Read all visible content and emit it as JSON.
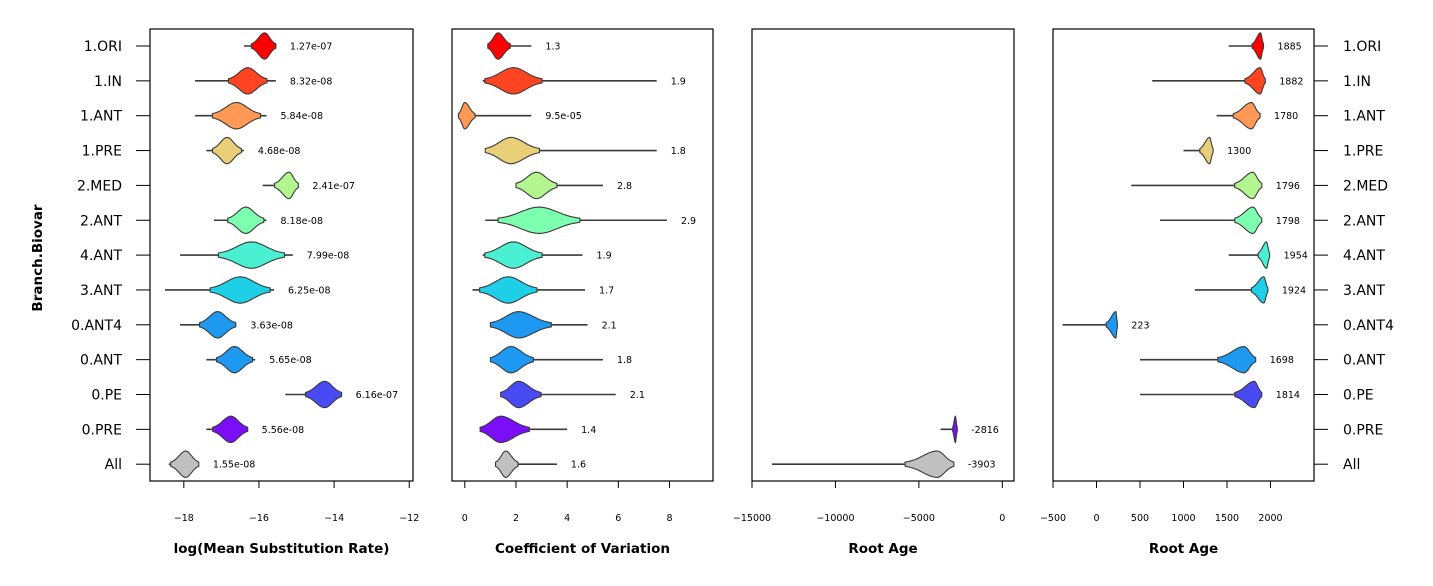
{
  "ylabel": "Branch.Biovar",
  "rows": [
    "1.ORI",
    "1.IN",
    "1.ANT",
    "1.PRE",
    "2.MED",
    "2.ANT",
    "4.ANT",
    "3.ANT",
    "0.ANT4",
    "0.ANT",
    "0.PE",
    "0.PRE",
    "All"
  ],
  "colors": [
    "#ff0000",
    "#ff4422",
    "#ff9955",
    "#e8cf78",
    "#b3f58f",
    "#7dffb0",
    "#4af0d2",
    "#1ecfe8",
    "#1d99f2",
    "#1d99f2",
    "#4a4af5",
    "#7a0ff7",
    "#c0c0c0"
  ],
  "chart_data": [
    {
      "type": "violin",
      "xlabel": "log(Mean Substitution Rate)",
      "xlim": [
        -18.9,
        -11.9
      ],
      "xticks": [
        -18,
        -16,
        -14,
        -12
      ],
      "xtick_labels": [
        "−18",
        "−16",
        "−14",
        "−12"
      ],
      "series": [
        {
          "row": "1.ORI",
          "center": -15.85,
          "min": -16.4,
          "max": -15.55,
          "width": 0.22,
          "annotation": "1.27e-07"
        },
        {
          "row": "1.IN",
          "center": -16.3,
          "min": -17.7,
          "max": -15.55,
          "width": 0.32,
          "annotation": "8.32e-08"
        },
        {
          "row": "1.ANT",
          "center": -16.6,
          "min": -17.7,
          "max": -15.8,
          "width": 0.4,
          "annotation": "5.84e-08"
        },
        {
          "row": "1.PRE",
          "center": -16.85,
          "min": -17.4,
          "max": -16.4,
          "width": 0.24,
          "annotation": "4.68e-08"
        },
        {
          "row": "2.MED",
          "center": -15.2,
          "min": -15.9,
          "max": -14.95,
          "width": 0.24,
          "annotation": "2.41e-07"
        },
        {
          "row": "2.ANT",
          "center": -16.35,
          "min": -17.2,
          "max": -15.8,
          "width": 0.3,
          "annotation": "8.18e-08"
        },
        {
          "row": "4.ANT",
          "center": -16.2,
          "min": -18.1,
          "max": -15.1,
          "width": 0.55,
          "annotation": "7.99e-08"
        },
        {
          "row": "3.ANT",
          "center": -16.5,
          "min": -18.5,
          "max": -15.6,
          "width": 0.5,
          "annotation": "6.25e-08"
        },
        {
          "row": "0.ANT4",
          "center": -17.1,
          "min": -18.1,
          "max": -16.6,
          "width": 0.3,
          "annotation": "3.63e-08"
        },
        {
          "row": "0.ANT",
          "center": -16.65,
          "min": -17.4,
          "max": -16.1,
          "width": 0.3,
          "annotation": "5.65e-08"
        },
        {
          "row": "0.PE",
          "center": -14.25,
          "min": -15.3,
          "max": -13.8,
          "width": 0.32,
          "annotation": "6.16e-07"
        },
        {
          "row": "0.PRE",
          "center": -16.75,
          "min": -17.4,
          "max": -16.3,
          "width": 0.3,
          "annotation": "5.56e-08"
        },
        {
          "row": "All",
          "center": -17.95,
          "min": -18.4,
          "max": -17.6,
          "width": 0.25,
          "annotation": "1.55e-08"
        }
      ]
    },
    {
      "type": "violin",
      "xlabel": "Coefficient of Variation",
      "xlim": [
        -0.5,
        9.7
      ],
      "xticks": [
        0,
        2,
        4,
        6,
        8
      ],
      "xtick_labels": [
        "0",
        "2",
        "4",
        "6",
        "8"
      ],
      "series": [
        {
          "row": "1.ORI",
          "center": 1.3,
          "min": 0.9,
          "max": 2.6,
          "width": 0.3,
          "annotation": "1.3"
        },
        {
          "row": "1.IN",
          "center": 1.9,
          "min": 0.7,
          "max": 7.5,
          "width": 0.7,
          "annotation": "1.9"
        },
        {
          "row": "1.ANT",
          "center": 0.0,
          "min": -0.25,
          "max": 2.6,
          "width": 0.25,
          "annotation": "9.5e-05"
        },
        {
          "row": "1.PRE",
          "center": 1.8,
          "min": 0.8,
          "max": 7.5,
          "width": 0.7,
          "annotation": "1.8"
        },
        {
          "row": "2.MED",
          "center": 2.8,
          "min": 2.0,
          "max": 5.4,
          "width": 0.5,
          "annotation": "2.8"
        },
        {
          "row": "2.ANT",
          "center": 2.9,
          "min": 0.8,
          "max": 7.9,
          "width": 1.0,
          "annotation": "2.9"
        },
        {
          "row": "4.ANT",
          "center": 1.9,
          "min": 0.7,
          "max": 4.6,
          "width": 0.7,
          "annotation": "1.9"
        },
        {
          "row": "3.ANT",
          "center": 1.7,
          "min": 0.3,
          "max": 4.7,
          "width": 0.7,
          "annotation": "1.7"
        },
        {
          "row": "0.ANT4",
          "center": 2.1,
          "min": 1.0,
          "max": 4.8,
          "width": 0.8,
          "annotation": "2.1"
        },
        {
          "row": "0.ANT",
          "center": 1.8,
          "min": 1.0,
          "max": 5.4,
          "width": 0.55,
          "annotation": "1.8"
        },
        {
          "row": "0.PE",
          "center": 2.1,
          "min": 1.4,
          "max": 5.9,
          "width": 0.55,
          "annotation": "2.1"
        },
        {
          "row": "0.PRE",
          "center": 1.4,
          "min": 0.6,
          "max": 4.0,
          "width": 0.7,
          "annotation": "1.4"
        },
        {
          "row": "All",
          "center": 1.6,
          "min": 1.2,
          "max": 3.6,
          "width": 0.3,
          "annotation": "1.6"
        }
      ]
    },
    {
      "type": "violin",
      "xlabel": "Root Age",
      "xlim": [
        -15000,
        700
      ],
      "xticks": [
        -15000,
        -10000,
        -5000,
        0
      ],
      "xtick_labels": [
        "−15000",
        "−10000",
        "−5000",
        "0"
      ],
      "series": [
        {
          "row": "0.PRE",
          "center": -2816,
          "min": -3700,
          "max": -2700,
          "width": 100,
          "annotation": "-2816"
        },
        {
          "row": "All",
          "center": -3903,
          "min": -13800,
          "max": -2900,
          "width": 1200,
          "annotation": "-3903"
        }
      ]
    },
    {
      "type": "violin",
      "xlabel": "Root Age",
      "xlim": [
        -500,
        2500
      ],
      "xticks": [
        -500,
        0,
        500,
        1000,
        1500,
        2000
      ],
      "xtick_labels": [
        "−500",
        "0",
        "500",
        "1000",
        "1500",
        "2000"
      ],
      "series": [
        {
          "row": "1.ORI",
          "center": 1885,
          "min": 1520,
          "max": 1920,
          "width": 60,
          "annotation": "1885"
        },
        {
          "row": "1.IN",
          "center": 1882,
          "min": 640,
          "max": 1940,
          "width": 110,
          "annotation": "1882"
        },
        {
          "row": "1.ANT",
          "center": 1780,
          "min": 1380,
          "max": 1880,
          "width": 130,
          "annotation": "1780"
        },
        {
          "row": "1.PRE",
          "center": 1300,
          "min": 1000,
          "max": 1340,
          "width": 70,
          "annotation": "1300"
        },
        {
          "row": "2.MED",
          "center": 1796,
          "min": 400,
          "max": 1900,
          "width": 130,
          "annotation": "1796"
        },
        {
          "row": "2.ANT",
          "center": 1798,
          "min": 730,
          "max": 1900,
          "width": 130,
          "annotation": "1798"
        },
        {
          "row": "4.ANT",
          "center": 1954,
          "min": 1520,
          "max": 1990,
          "width": 60,
          "annotation": "1954"
        },
        {
          "row": "3.ANT",
          "center": 1924,
          "min": 1130,
          "max": 1970,
          "width": 90,
          "annotation": "1924"
        },
        {
          "row": "0.ANT4",
          "center": 223,
          "min": -390,
          "max": 240,
          "width": 70,
          "annotation": "223"
        },
        {
          "row": "0.ANT",
          "center": 1698,
          "min": 500,
          "max": 1830,
          "width": 190,
          "annotation": "1698"
        },
        {
          "row": "0.PE",
          "center": 1814,
          "min": 500,
          "max": 1900,
          "width": 140,
          "annotation": "1814"
        },
        {
          "row": "All",
          "center": null,
          "min": null,
          "max": null,
          "width": null,
          "annotation": ""
        }
      ]
    }
  ]
}
